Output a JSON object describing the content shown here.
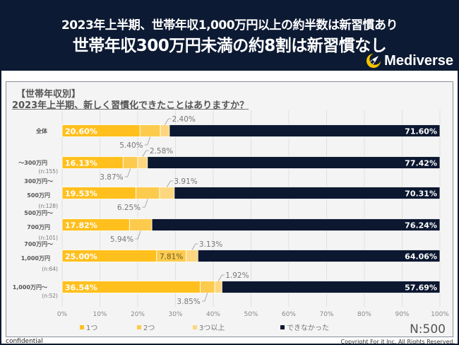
{
  "header": {
    "title_line1": "2023年上半期、世帯年収1,000万円以上の約半数は新習慣あり",
    "title_line2": "世帯年収300万円未満の約8割は新習慣なし",
    "brand": "Mediverse",
    "brand_icon": "crescent-rocket-icon"
  },
  "panel": {
    "section_label": "【世帯年収別】",
    "question": "2023年上半期、新しく習慣化できたことはありますか？",
    "sample_size": "N:500"
  },
  "footer": {
    "left": "confidential",
    "right": "Copyright For it Inc. All Rights Reserved."
  },
  "colors": {
    "header_bg": "#0d1a33",
    "one": "#ffc01e",
    "two": "#fccb4e",
    "three_plus": "#fdd77f",
    "none": "#0c1730"
  },
  "chart_data": {
    "type": "bar",
    "orientation": "horizontal-stacked-100",
    "title": "2023年上半期、新しく習慣化できたことはありますか？",
    "xlabel": "",
    "ylabel": "",
    "xlim": [
      0,
      100
    ],
    "x_ticks": [
      "0%",
      "10%",
      "20%",
      "30%",
      "40%",
      "50%",
      "60%",
      "70%",
      "80%",
      "90%",
      "100%"
    ],
    "grid": true,
    "legend_position": "bottom",
    "categories": [
      {
        "label": [
          "全体"
        ],
        "n": ""
      },
      {
        "label": [
          "〜300万円"
        ],
        "n": "(n:155)"
      },
      {
        "label": [
          "300万円〜",
          "500万円"
        ],
        "n": "(n:128)"
      },
      {
        "label": [
          "500万円〜",
          "700万円"
        ],
        "n": "(n:101)"
      },
      {
        "label": [
          "700万円〜",
          "1,000万円"
        ],
        "n": "(n:64)"
      },
      {
        "label": [
          "1,000万円〜"
        ],
        "n": "(n:52)"
      }
    ],
    "series": [
      {
        "name": "1つ",
        "color": "#ffc01e",
        "values": [
          20.6,
          16.13,
          19.53,
          17.82,
          25.0,
          36.54
        ]
      },
      {
        "name": "2つ",
        "color": "#fccb4e",
        "values": [
          5.4,
          3.87,
          6.25,
          5.94,
          7.81,
          3.85
        ]
      },
      {
        "name": "3つ以上",
        "color": "#fdd77f",
        "values": [
          2.4,
          2.58,
          3.91,
          0,
          3.13,
          1.92
        ]
      },
      {
        "name": "できなかった",
        "color": "#0c1730",
        "values": [
          71.6,
          77.42,
          70.31,
          76.24,
          64.06,
          57.69
        ]
      }
    ]
  }
}
